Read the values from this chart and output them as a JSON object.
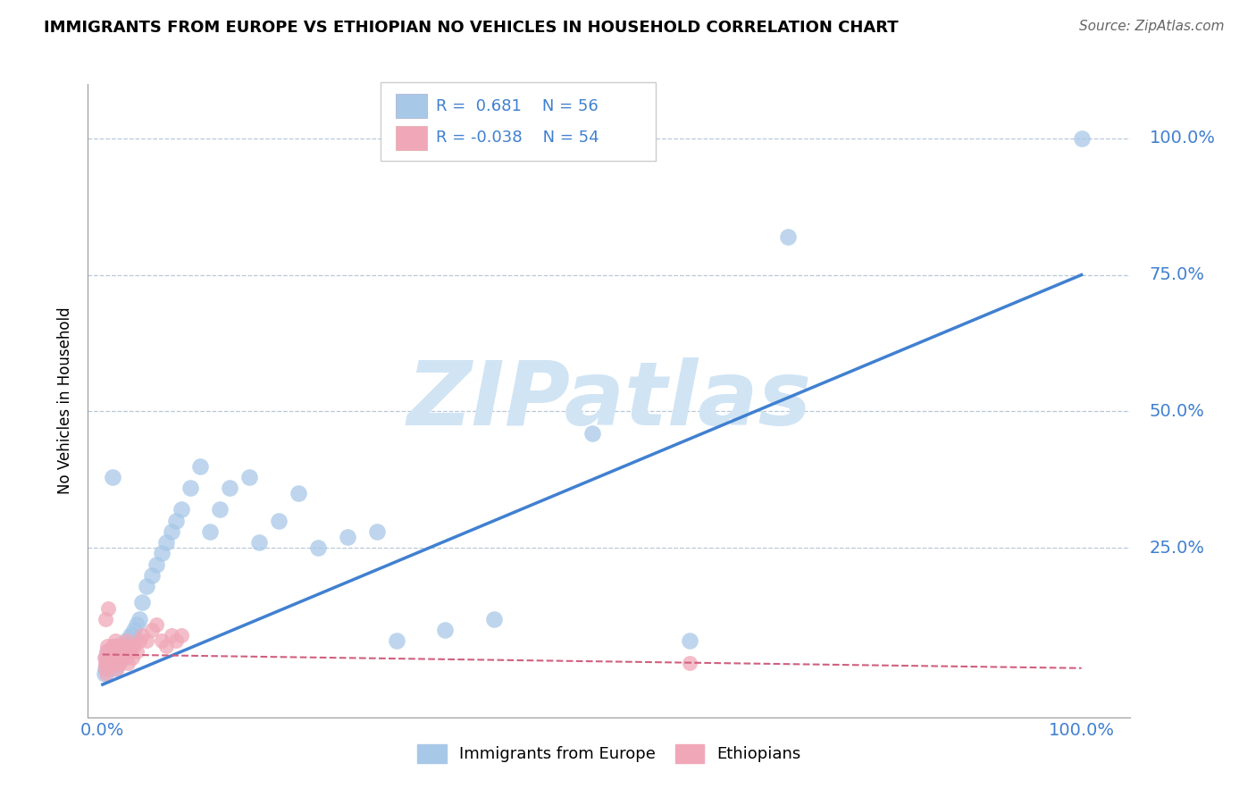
{
  "title": "IMMIGRANTS FROM EUROPE VS ETHIOPIAN NO VEHICLES IN HOUSEHOLD CORRELATION CHART",
  "source": "Source: ZipAtlas.com",
  "ylabel": "No Vehicles in Household",
  "ytick_vals": [
    0.0,
    0.25,
    0.5,
    0.75,
    1.0
  ],
  "ytick_labels": [
    "",
    "25.0%",
    "50.0%",
    "75.0%",
    "100.0%"
  ],
  "xtick_labels": [
    "0.0%",
    "",
    "",
    "",
    "100.0%"
  ],
  "legend_r1": "R =  0.681",
  "legend_n1": "N = 56",
  "legend_r2": "R = -0.038",
  "legend_n2": "N = 54",
  "blue_color": "#a8c8e8",
  "pink_color": "#f0a8b8",
  "line_blue": "#4080d0",
  "line_pink": "#d06080",
  "label_color": "#4080d0",
  "watermark_color": "#d0e4f4",
  "blue_trendline": [
    0.0,
    0.0,
    1.0,
    0.75
  ],
  "pink_trendline": [
    0.0,
    0.055,
    1.0,
    0.03
  ],
  "blue_x": [
    0.002,
    0.003,
    0.004,
    0.005,
    0.006,
    0.007,
    0.008,
    0.009,
    0.01,
    0.011,
    0.012,
    0.013,
    0.014,
    0.015,
    0.016,
    0.017,
    0.018,
    0.019,
    0.02,
    0.022,
    0.024,
    0.026,
    0.028,
    0.03,
    0.032,
    0.035,
    0.038,
    0.04,
    0.045,
    0.05,
    0.055,
    0.06,
    0.065,
    0.07,
    0.075,
    0.08,
    0.09,
    0.1,
    0.11,
    0.12,
    0.13,
    0.15,
    0.16,
    0.18,
    0.2,
    0.22,
    0.25,
    0.28,
    0.3,
    0.35,
    0.4,
    0.5,
    0.6,
    0.7,
    1.0,
    0.01
  ],
  "blue_y": [
    0.02,
    0.03,
    0.05,
    0.04,
    0.06,
    0.05,
    0.03,
    0.04,
    0.05,
    0.06,
    0.04,
    0.03,
    0.06,
    0.07,
    0.05,
    0.04,
    0.06,
    0.05,
    0.07,
    0.06,
    0.08,
    0.07,
    0.09,
    0.09,
    0.1,
    0.11,
    0.12,
    0.15,
    0.18,
    0.2,
    0.22,
    0.24,
    0.26,
    0.28,
    0.3,
    0.32,
    0.36,
    0.4,
    0.28,
    0.32,
    0.36,
    0.38,
    0.26,
    0.3,
    0.35,
    0.25,
    0.27,
    0.28,
    0.08,
    0.1,
    0.12,
    0.46,
    0.08,
    0.82,
    1.0,
    0.38
  ],
  "pink_x": [
    0.002,
    0.003,
    0.004,
    0.005,
    0.006,
    0.007,
    0.008,
    0.009,
    0.01,
    0.011,
    0.012,
    0.013,
    0.014,
    0.015,
    0.016,
    0.017,
    0.018,
    0.019,
    0.02,
    0.022,
    0.024,
    0.026,
    0.028,
    0.03,
    0.032,
    0.035,
    0.038,
    0.04,
    0.045,
    0.05,
    0.055,
    0.06,
    0.065,
    0.07,
    0.075,
    0.08,
    0.003,
    0.005,
    0.007,
    0.009,
    0.011,
    0.013,
    0.015,
    0.017,
    0.019,
    0.021,
    0.023,
    0.025,
    0.027,
    0.029,
    0.003,
    0.006,
    0.6,
    0.004
  ],
  "pink_y": [
    0.05,
    0.04,
    0.06,
    0.07,
    0.05,
    0.04,
    0.06,
    0.05,
    0.07,
    0.06,
    0.05,
    0.04,
    0.06,
    0.07,
    0.05,
    0.04,
    0.06,
    0.05,
    0.07,
    0.06,
    0.05,
    0.04,
    0.06,
    0.05,
    0.07,
    0.06,
    0.08,
    0.09,
    0.08,
    0.1,
    0.11,
    0.08,
    0.07,
    0.09,
    0.08,
    0.09,
    0.03,
    0.04,
    0.05,
    0.06,
    0.07,
    0.08,
    0.03,
    0.04,
    0.05,
    0.06,
    0.07,
    0.08,
    0.06,
    0.07,
    0.12,
    0.14,
    0.04,
    0.02
  ]
}
